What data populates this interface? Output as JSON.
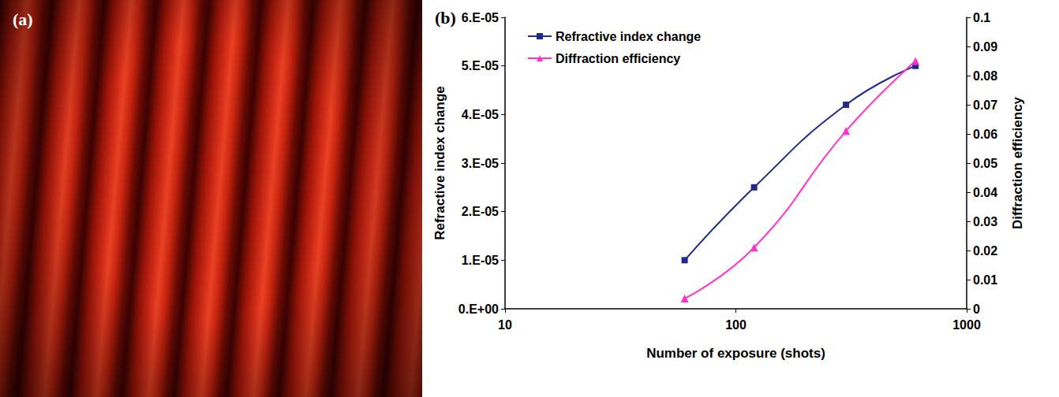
{
  "image_panel": {
    "label": "(a)"
  },
  "chart_data": {
    "type": "line",
    "label": "(b)",
    "x_label": "Number of exposure (shots)",
    "y_label": "Refractive index change",
    "y2_label": "Diffraction efficiency",
    "log": "x",
    "grid": false,
    "legend": "upper left",
    "x": [
      60,
      120,
      300,
      600
    ],
    "xlim": [
      10,
      1000
    ],
    "xticks": [
      10,
      100,
      1000
    ],
    "ylim": [
      0,
      6e-05
    ],
    "yticks": [
      {
        "value": 0,
        "label": "0.E+00"
      },
      {
        "value": 1e-05,
        "label": "1.E-05"
      },
      {
        "value": 2e-05,
        "label": "2.E-05"
      },
      {
        "value": 3e-05,
        "label": "3.E-05"
      },
      {
        "value": 4e-05,
        "label": "4.E-05"
      },
      {
        "value": 5e-05,
        "label": "5.E-05"
      },
      {
        "value": 6e-05,
        "label": "6.E-05"
      }
    ],
    "y2lim": [
      0,
      0.1
    ],
    "y2ticks": [
      0,
      0.01,
      0.02,
      0.03,
      0.04,
      0.05,
      0.06,
      0.07,
      0.08,
      0.09,
      0.1
    ],
    "series": [
      {
        "name": "Refractive index change",
        "color": "#1f2a8a",
        "marker": "square",
        "line_style": "solid",
        "values": [
          1e-05,
          2.5e-05,
          4.2e-05,
          5e-05
        ]
      },
      {
        "name": "Diffraction efficiency",
        "color": "#ff33cc",
        "marker": "triangle",
        "line_style": "solid",
        "axis": "y2",
        "values": [
          0.0035,
          0.021,
          0.061,
          0.085
        ]
      }
    ]
  }
}
